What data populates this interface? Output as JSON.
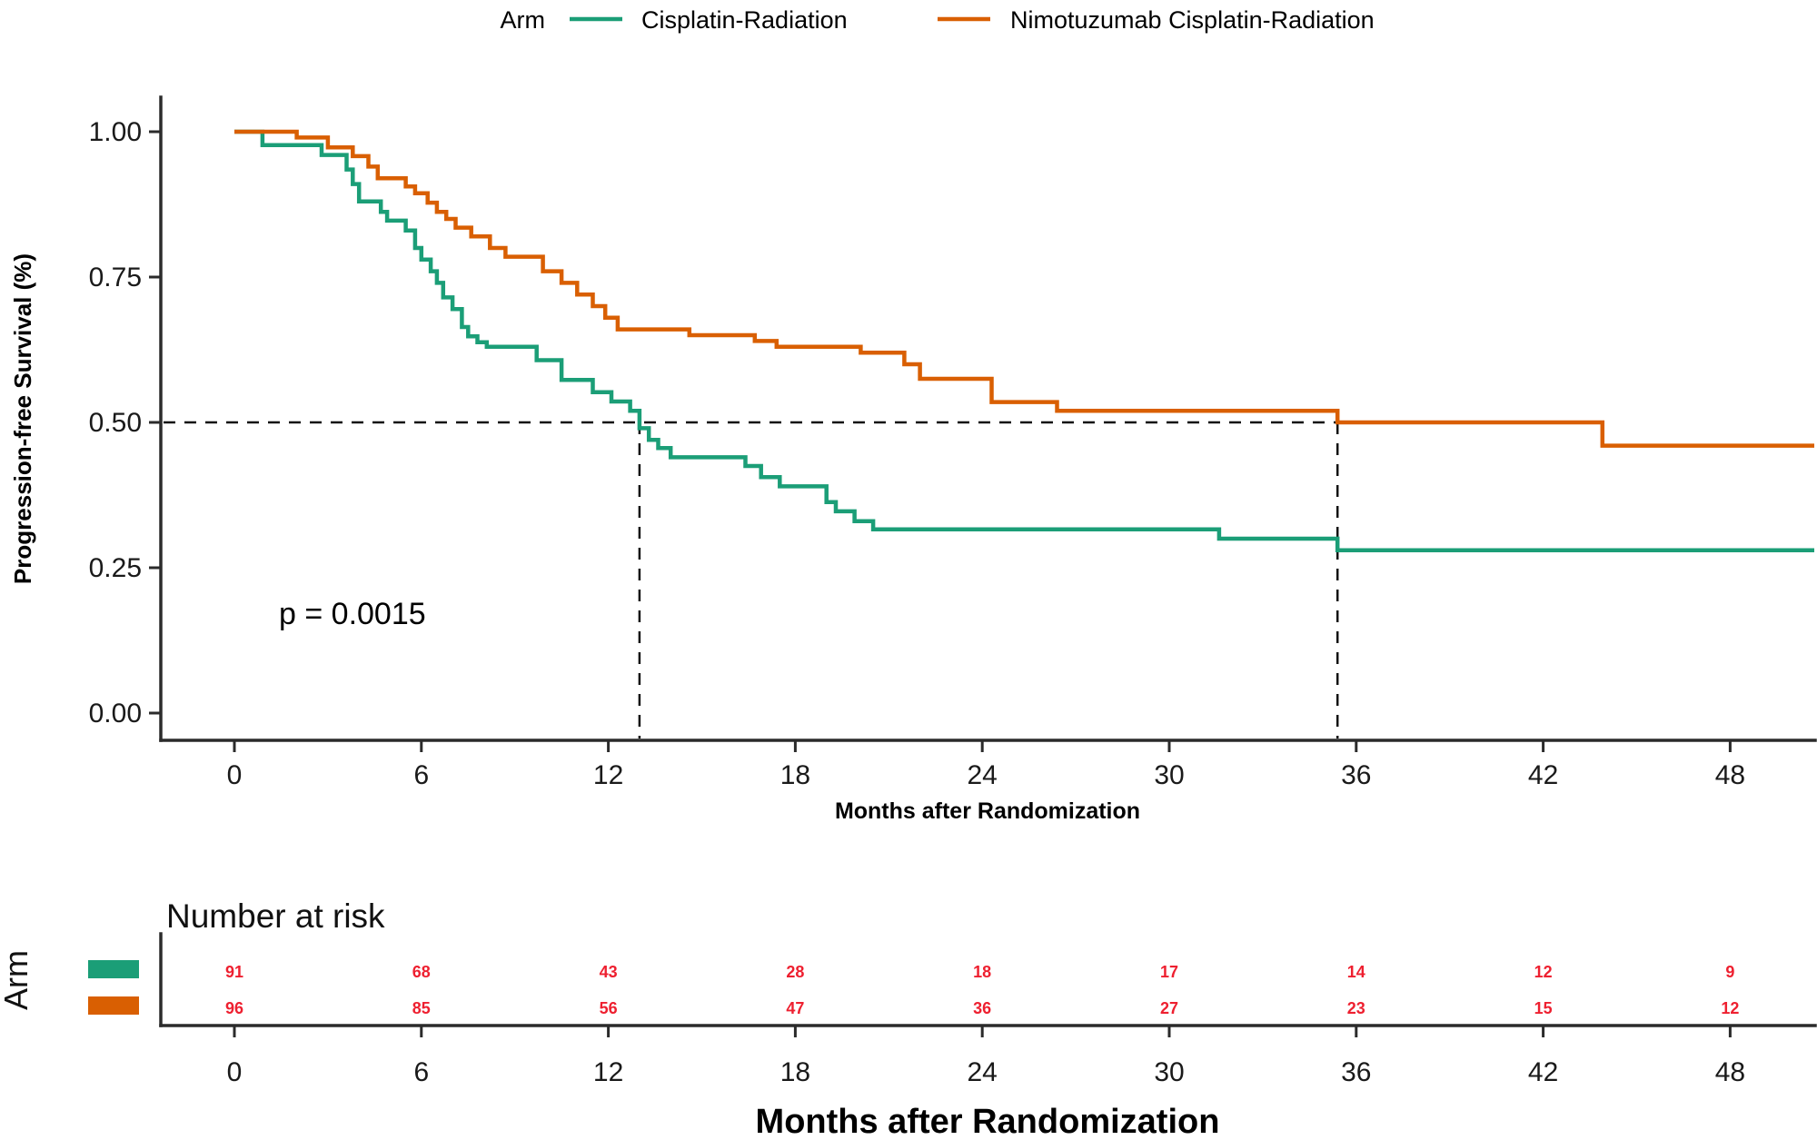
{
  "legend": {
    "title": "Arm",
    "items": [
      {
        "label": "Cisplatin-Radiation",
        "color": "#1b9e77"
      },
      {
        "label": "Nimotuzumab Cisplatin-Radiation",
        "color": "#d95f02"
      }
    ]
  },
  "plot": {
    "ylabel": "Progression-free Survival (%)",
    "xlabel": "Months after Randomization",
    "pvalue_text": "p = 0.0015",
    "y_tick_labels": [
      "1.00",
      "0.75",
      "0.50",
      "0.25",
      "0.00"
    ],
    "x_tick_values": [
      0,
      6,
      12,
      18,
      24,
      30,
      36,
      42,
      48
    ]
  },
  "risk_table": {
    "title": "Number at risk",
    "axis_title": "Arm",
    "xlabel": "Months after Randomization",
    "x_tick_values": [
      0,
      6,
      12,
      18,
      24,
      30,
      36,
      42,
      48
    ],
    "number_color": "#ee2030",
    "rows": [
      {
        "name": "Cisplatin-Radiation",
        "color": "#1b9e77",
        "counts": [
          91,
          68,
          43,
          28,
          18,
          17,
          14,
          12,
          9
        ]
      },
      {
        "name": "Nimotuzumab Cisplatin-Radiation",
        "color": "#d95f02",
        "counts": [
          96,
          85,
          56,
          47,
          36,
          27,
          23,
          15,
          12
        ]
      }
    ]
  },
  "chart_data": {
    "type": "line",
    "subtype": "kaplan-meier-step",
    "title": "",
    "xlabel": "Months after Randomization",
    "ylabel": "Progression-free Survival (%)",
    "xlim": [
      0,
      50.7
    ],
    "ylim": [
      0,
      1.0
    ],
    "x_ticks": [
      0,
      6,
      12,
      18,
      24,
      30,
      36,
      42,
      48
    ],
    "y_ticks": [
      0.0,
      0.25,
      0.5,
      0.75,
      1.0
    ],
    "grid": false,
    "legend_position": "top",
    "pvalue": 0.0015,
    "median_guides": {
      "y": 0.5,
      "x": [
        13.0,
        35.4
      ]
    },
    "series": [
      {
        "name": "Cisplatin-Radiation",
        "color": "#1b9e77",
        "end": 50.7,
        "points": [
          [
            0,
            1.0
          ],
          [
            0.9,
            0.977
          ],
          [
            2.8,
            0.96
          ],
          [
            3.6,
            0.935
          ],
          [
            3.8,
            0.91
          ],
          [
            4.0,
            0.88
          ],
          [
            4.7,
            0.862
          ],
          [
            4.9,
            0.847
          ],
          [
            5.5,
            0.83
          ],
          [
            5.8,
            0.8
          ],
          [
            6.0,
            0.78
          ],
          [
            6.3,
            0.76
          ],
          [
            6.5,
            0.74
          ],
          [
            6.7,
            0.715
          ],
          [
            7.0,
            0.695
          ],
          [
            7.3,
            0.664
          ],
          [
            7.5,
            0.648
          ],
          [
            7.8,
            0.638
          ],
          [
            8.1,
            0.63
          ],
          [
            9.7,
            0.607
          ],
          [
            10.5,
            0.573
          ],
          [
            11.5,
            0.552
          ],
          [
            12.1,
            0.536
          ],
          [
            12.7,
            0.52
          ],
          [
            13.0,
            0.49
          ],
          [
            13.3,
            0.47
          ],
          [
            13.6,
            0.456
          ],
          [
            14.0,
            0.44
          ],
          [
            16.4,
            0.425
          ],
          [
            16.9,
            0.406
          ],
          [
            17.5,
            0.39
          ],
          [
            19.0,
            0.363
          ],
          [
            19.3,
            0.347
          ],
          [
            19.9,
            0.33
          ],
          [
            20.5,
            0.316
          ],
          [
            31.6,
            0.3
          ],
          [
            35.4,
            0.28
          ]
        ]
      },
      {
        "name": "Nimotuzumab Cisplatin-Radiation",
        "color": "#d95f02",
        "end": 50.7,
        "points": [
          [
            0,
            1.0
          ],
          [
            2.0,
            0.99
          ],
          [
            3.0,
            0.973
          ],
          [
            3.8,
            0.958
          ],
          [
            4.3,
            0.94
          ],
          [
            4.6,
            0.92
          ],
          [
            5.5,
            0.906
          ],
          [
            5.8,
            0.894
          ],
          [
            6.2,
            0.878
          ],
          [
            6.5,
            0.862
          ],
          [
            6.8,
            0.85
          ],
          [
            7.1,
            0.835
          ],
          [
            7.6,
            0.82
          ],
          [
            8.2,
            0.8
          ],
          [
            8.7,
            0.785
          ],
          [
            9.9,
            0.76
          ],
          [
            10.5,
            0.74
          ],
          [
            11.0,
            0.72
          ],
          [
            11.5,
            0.7
          ],
          [
            11.9,
            0.68
          ],
          [
            12.3,
            0.66
          ],
          [
            14.6,
            0.65
          ],
          [
            16.7,
            0.64
          ],
          [
            17.4,
            0.63
          ],
          [
            20.1,
            0.62
          ],
          [
            21.5,
            0.6
          ],
          [
            22.0,
            0.575
          ],
          [
            24.3,
            0.535
          ],
          [
            26.4,
            0.52
          ],
          [
            35.4,
            0.5
          ],
          [
            43.9,
            0.46
          ]
        ]
      }
    ]
  }
}
